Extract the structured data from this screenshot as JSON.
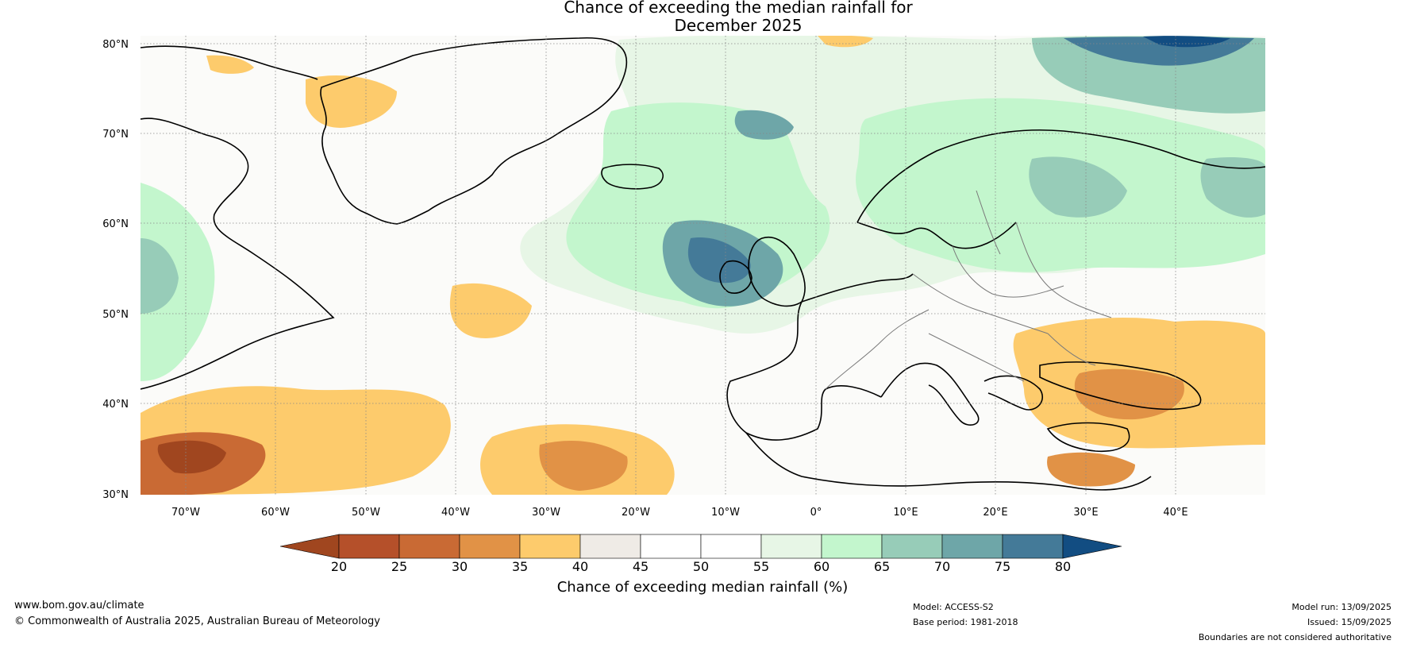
{
  "title_line1": "Chance of exceeding the median rainfall for",
  "title_line2": "December 2025",
  "map": {
    "lat_labels": [
      "80°N",
      "70°N",
      "60°N",
      "50°N",
      "40°N",
      "30°N"
    ],
    "lon_labels": [
      "70°W",
      "60°W",
      "50°W",
      "40°W",
      "30°W",
      "20°W",
      "10°W",
      "0°",
      "10°E",
      "20°E",
      "30°E",
      "40°E"
    ]
  },
  "colorbar": {
    "ticks": [
      "20",
      "25",
      "30",
      "35",
      "40",
      "45",
      "50",
      "55",
      "60",
      "65",
      "70",
      "75",
      "80"
    ],
    "colors": [
      "#a0461f",
      "#b5502a",
      "#c96a34",
      "#e19246",
      "#fdcb6c",
      "#efebe6",
      "#ffffff",
      "#ffffff",
      "#e7f6e6",
      "#c3f6cd",
      "#97ccb8",
      "#6ea6a8",
      "#447a98",
      "#124d82"
    ],
    "label": "Chance of exceeding median rainfall (%)"
  },
  "footer": {
    "website": "www.bom.gov.au/climate",
    "copyright": "© Commonwealth of Australia 2025, Australian Bureau of Meteorology",
    "model": "Model: ACCESS-S2",
    "base_period": "Base period: 1981-2018",
    "model_run": "Model run: 13/09/2025",
    "issued": "Issued: 15/09/2025",
    "disclaimer": "Boundaries are not considered authoritative"
  }
}
